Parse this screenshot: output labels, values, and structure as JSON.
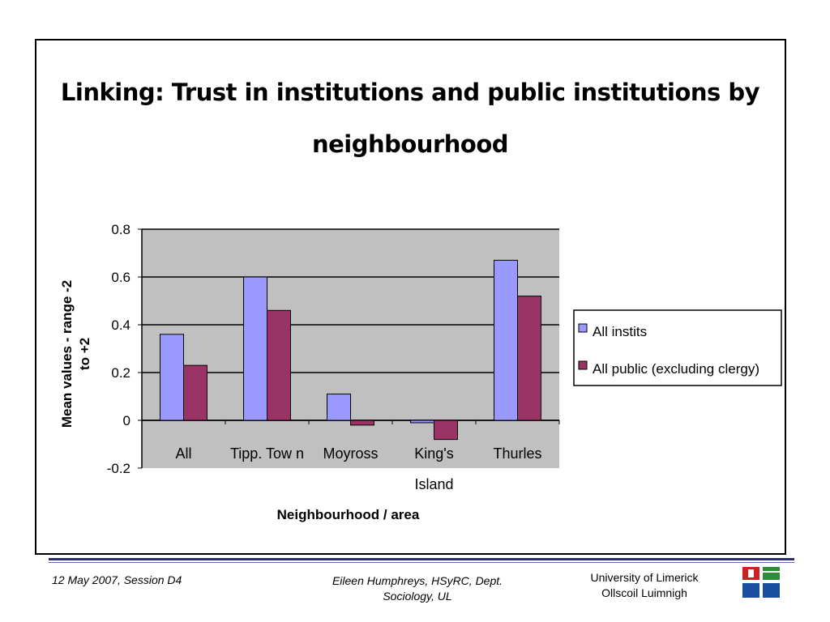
{
  "chart_data": {
    "type": "bar",
    "title": "Linking: Trust in institutions and public institutions by neighbourhood",
    "categories": [
      "All",
      "Tipp. Tow n",
      "Moyross",
      "King's Island",
      "Thurles"
    ],
    "category_lines": [
      [
        "All"
      ],
      [
        "Tipp. Tow n"
      ],
      [
        "Moyross"
      ],
      [
        "King's",
        "Island"
      ],
      [
        "Thurles"
      ]
    ],
    "series": [
      {
        "name": "All instits",
        "values": [
          0.36,
          0.6,
          0.11,
          -0.01,
          0.67
        ],
        "color": "#9999ff"
      },
      {
        "name": "All public (excluding clergy)",
        "values": [
          0.23,
          0.46,
          -0.02,
          -0.08,
          0.52
        ],
        "color": "#993366"
      }
    ],
    "xlabel": "Neighbourhood / area",
    "ylabel": "Mean values - range -2 to +2",
    "ylabel_lines": [
      "Mean values - range -2",
      "to +2"
    ],
    "ylim": [
      -0.2,
      0.8
    ],
    "yticks": [
      -0.2,
      0,
      0.2,
      0.4,
      0.6,
      0.8
    ],
    "ytick_labels": [
      "-0.2",
      "0",
      "0.2",
      "0.4",
      "0.6",
      "0.8"
    ],
    "grid": true,
    "plot_background": "#c0c0c0",
    "legend_position": "right"
  },
  "footer": {
    "date_session": "12 May 2007, Session D4",
    "author_line1": "Eileen Humphreys, HSyRC, Dept.",
    "author_line2": "Sociology, UL",
    "university_line1": "University of Limerick",
    "university_line2": "Ollscoil Luimnigh",
    "rule_color": "#2b2b7a"
  },
  "logo": {
    "colors": {
      "red": "#cc2222",
      "green": "#2e8b3a",
      "blue": "#1a4fa0"
    }
  }
}
